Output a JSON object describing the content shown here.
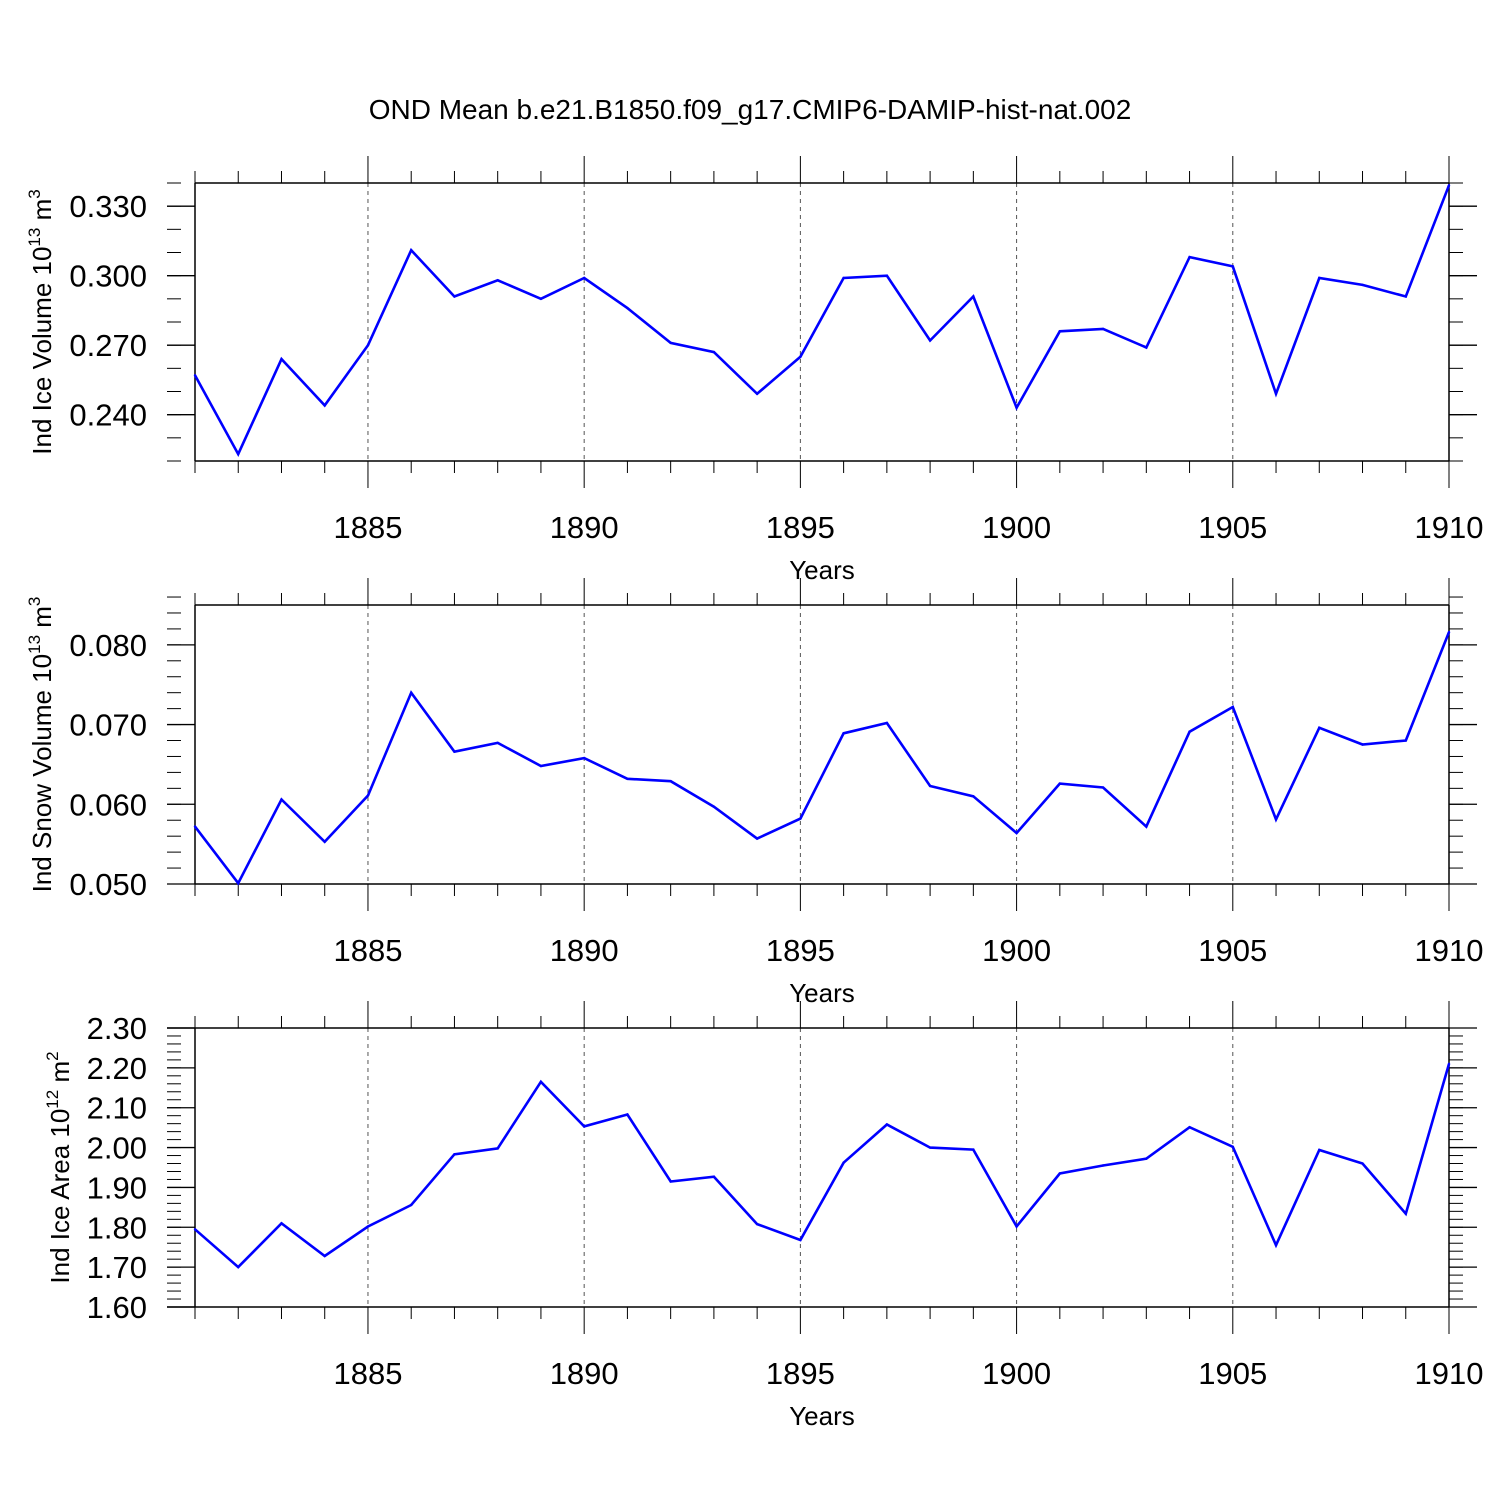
{
  "title": "OND Mean b.e21.B1850.f09_g17.CMIP6-DAMIP-hist-nat.002",
  "colors": {
    "line": "#0000ff",
    "axis": "#000000",
    "grid": "#000000"
  },
  "chart_data": [
    {
      "type": "line",
      "title": "OND Mean b.e21.B1850.f09_g17.CMIP6-DAMIP-hist-nat.002",
      "ylabel_main": "Ind Ice Volume 10",
      "ylabel_exp": "13",
      "ylabel_unit": " m",
      "ylabel_unit_exp": "3",
      "xlabel": "Years",
      "xlim": [
        1881,
        1910
      ],
      "ylim": [
        0.22,
        0.34
      ],
      "yticks": [
        0.24,
        0.27,
        0.3,
        0.33
      ],
      "ytick_labels": [
        "0.240",
        "0.270",
        "0.300",
        "0.330"
      ],
      "yminor_step": 0.01,
      "xticks": [
        1885,
        1890,
        1895,
        1900,
        1905,
        1910
      ],
      "xtick_labels": [
        "1885",
        "1890",
        "1895",
        "1900",
        "1905",
        "1910"
      ],
      "grid": "vertical-dashed",
      "x": [
        1881,
        1882,
        1883,
        1884,
        1885,
        1886,
        1887,
        1888,
        1889,
        1890,
        1891,
        1892,
        1893,
        1894,
        1895,
        1896,
        1897,
        1898,
        1899,
        1900,
        1901,
        1902,
        1903,
        1904,
        1905,
        1906,
        1907,
        1908,
        1909,
        1910
      ],
      "series": [
        {
          "name": "Ind Ice Volume",
          "values": [
            0.257,
            0.223,
            0.264,
            0.244,
            0.27,
            0.311,
            0.291,
            0.298,
            0.29,
            0.299,
            0.286,
            0.271,
            0.267,
            0.249,
            0.265,
            0.299,
            0.3,
            0.272,
            0.291,
            0.243,
            0.276,
            0.277,
            0.269,
            0.308,
            0.304,
            0.249,
            0.299,
            0.296,
            0.291,
            0.339
          ]
        }
      ]
    },
    {
      "type": "line",
      "ylabel_main": "Ind Snow Volume 10",
      "ylabel_exp": "13",
      "ylabel_unit": " m",
      "ylabel_unit_exp": "3",
      "xlabel": "Years",
      "xlim": [
        1881,
        1910
      ],
      "ylim": [
        0.05,
        0.085
      ],
      "yticks": [
        0.05,
        0.06,
        0.07,
        0.08
      ],
      "ytick_labels": [
        "0.050",
        "0.060",
        "0.070",
        "0.080"
      ],
      "yminor_step": 0.002,
      "xticks": [
        1885,
        1890,
        1895,
        1900,
        1905,
        1910
      ],
      "xtick_labels": [
        "1885",
        "1890",
        "1895",
        "1900",
        "1905",
        "1910"
      ],
      "grid": "vertical-dashed",
      "x": [
        1881,
        1882,
        1883,
        1884,
        1885,
        1886,
        1887,
        1888,
        1889,
        1890,
        1891,
        1892,
        1893,
        1894,
        1895,
        1896,
        1897,
        1898,
        1899,
        1900,
        1901,
        1902,
        1903,
        1904,
        1905,
        1906,
        1907,
        1908,
        1909,
        1910
      ],
      "series": [
        {
          "name": "Ind Snow Volume",
          "values": [
            0.0572,
            0.0501,
            0.0606,
            0.0553,
            0.0611,
            0.074,
            0.0666,
            0.0677,
            0.0648,
            0.0658,
            0.0632,
            0.0629,
            0.0597,
            0.0557,
            0.0582,
            0.0689,
            0.0702,
            0.0623,
            0.061,
            0.0564,
            0.0626,
            0.0621,
            0.0572,
            0.0691,
            0.0722,
            0.0581,
            0.0696,
            0.0675,
            0.068,
            0.0816
          ]
        }
      ]
    },
    {
      "type": "line",
      "ylabel_main": "Ind Ice Area 10",
      "ylabel_exp": "12",
      "ylabel_unit": " m",
      "ylabel_unit_exp": "2",
      "xlabel": "Years",
      "xlim": [
        1881,
        1910
      ],
      "ylim": [
        1.6,
        2.3
      ],
      "yticks": [
        1.6,
        1.7,
        1.8,
        1.9,
        2.0,
        2.1,
        2.2,
        2.3
      ],
      "ytick_labels": [
        "1.60",
        "1.70",
        "1.80",
        "1.90",
        "2.00",
        "2.10",
        "2.20",
        "2.30"
      ],
      "yminor_step": 0.02,
      "xticks": [
        1885,
        1890,
        1895,
        1900,
        1905,
        1910
      ],
      "xtick_labels": [
        "1885",
        "1890",
        "1895",
        "1900",
        "1905",
        "1910"
      ],
      "grid": "vertical-dashed",
      "x": [
        1881,
        1882,
        1883,
        1884,
        1885,
        1886,
        1887,
        1888,
        1889,
        1890,
        1891,
        1892,
        1893,
        1894,
        1895,
        1896,
        1897,
        1898,
        1899,
        1900,
        1901,
        1902,
        1903,
        1904,
        1905,
        1906,
        1907,
        1908,
        1909,
        1910
      ],
      "series": [
        {
          "name": "Ind Ice Area",
          "values": [
            1.795,
            1.7,
            1.81,
            1.728,
            1.802,
            1.856,
            1.983,
            1.998,
            2.165,
            2.053,
            2.083,
            1.915,
            1.927,
            1.808,
            1.768,
            1.962,
            2.058,
            2.0,
            1.995,
            1.802,
            1.935,
            1.955,
            1.972,
            2.051,
            2.002,
            1.755,
            1.994,
            1.96,
            1.834,
            2.21
          ]
        }
      ]
    }
  ]
}
